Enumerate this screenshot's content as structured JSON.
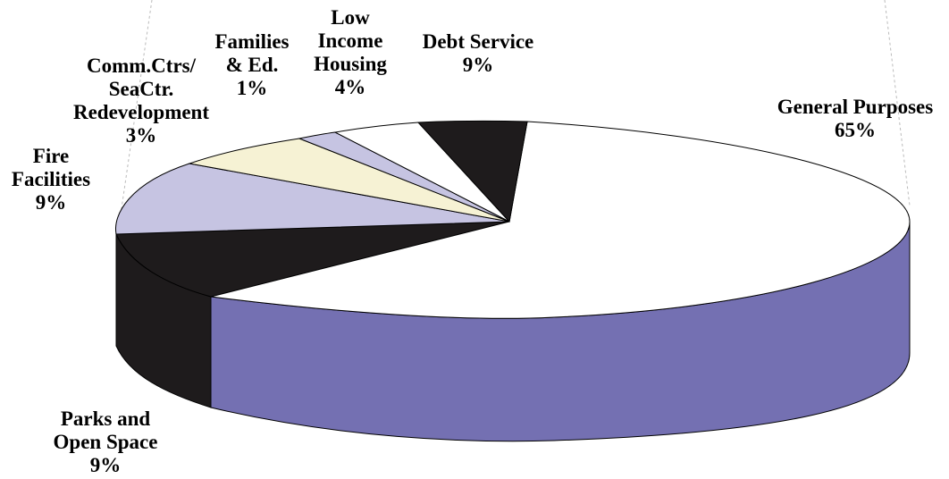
{
  "chart_data": {
    "type": "pie",
    "style": "3d-exploded-slice",
    "slices": [
      {
        "label": "General Purposes",
        "value": 65,
        "value_label": "65%",
        "color": "#ffffff",
        "side_color": "#7470b2",
        "label_lines": [
          "General Purposes",
          "65%"
        ]
      },
      {
        "label": "Parks and Open Space",
        "value": 9,
        "value_label": "9%",
        "color": "#1e1b1c",
        "side_color": "#1e1b1c",
        "label_lines": [
          "Parks and",
          "Open Space",
          "9%"
        ]
      },
      {
        "label": "Fire Facilities",
        "value": 9,
        "value_label": "9%",
        "color": "#c6c4e2",
        "side_color": "#c6c4e2",
        "label_lines": [
          "Fire",
          "Facilities",
          "9%"
        ]
      },
      {
        "label": "Comm.Ctrs/SeaCtr. Redevelopment",
        "value": 3,
        "value_label": "3%",
        "color": "#f6f2d4",
        "side_color": "#f6f2d4",
        "label_lines": [
          "Comm.Ctrs/",
          "SeaCtr.",
          "Redevelopment",
          "3%"
        ]
      },
      {
        "label": "Families & Ed.",
        "value": 1,
        "value_label": "1%",
        "color": "#c6c4e2",
        "side_color": "#c6c4e2",
        "label_lines": [
          "Families",
          "& Ed.",
          "1%"
        ]
      },
      {
        "label": "Low Income Housing",
        "value": 4,
        "value_label": "4%",
        "color": "#ffffff",
        "side_color": "#ffffff",
        "label_lines": [
          "Low",
          "Income",
          "Housing",
          "4%"
        ]
      },
      {
        "label": "Debt Service",
        "value": 9,
        "value_label": "9%",
        "color": "#1e1b1c",
        "side_color": "#1e1b1c",
        "label_lines": [
          "Debt Service",
          "9%"
        ]
      }
    ],
    "title": "",
    "legend": "none"
  }
}
